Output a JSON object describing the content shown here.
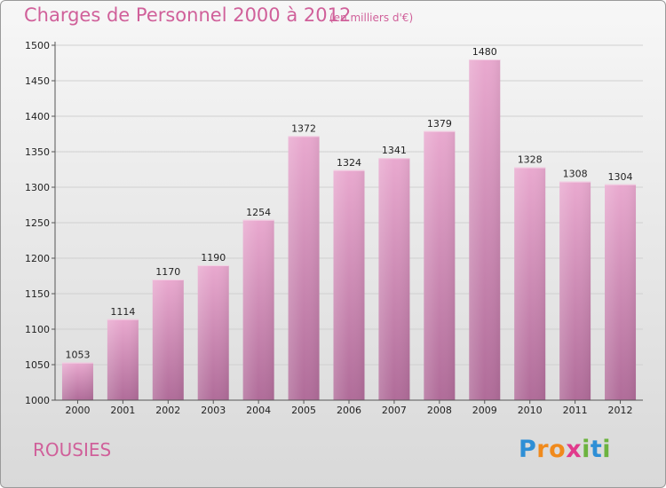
{
  "title": "Charges de Personnel 2000 à 2012",
  "subtitle": "(en milliers d'€)",
  "location": "ROUSIES",
  "logo": {
    "letters": [
      "P",
      "r",
      "o",
      "x",
      "i",
      "t",
      "i"
    ],
    "colors": [
      "#2e8fd6",
      "#f08a1c",
      "#f08a1c",
      "#e13a8c",
      "#6cb33f",
      "#2e8fd6",
      "#6cb33f"
    ]
  },
  "colors": {
    "accent": "#d0609a",
    "bar_top": "#e9a9cf",
    "bar_bottom": "#b06c99"
  },
  "chart_data": {
    "type": "bar",
    "title": "Charges de Personnel 2000 à 2012",
    "subtitle": "(en milliers d'€)",
    "categories": [
      "2000",
      "2001",
      "2002",
      "2003",
      "2004",
      "2005",
      "2006",
      "2007",
      "2008",
      "2009",
      "2010",
      "2011",
      "2012"
    ],
    "values": [
      1053,
      1114,
      1170,
      1190,
      1254,
      1372,
      1324,
      1341,
      1379,
      1480,
      1328,
      1308,
      1304
    ],
    "ylim": [
      1000,
      1500
    ],
    "yticks": [
      1000,
      1050,
      1100,
      1150,
      1200,
      1250,
      1300,
      1350,
      1400,
      1450,
      1500
    ],
    "grid": true,
    "data_labels": true
  }
}
